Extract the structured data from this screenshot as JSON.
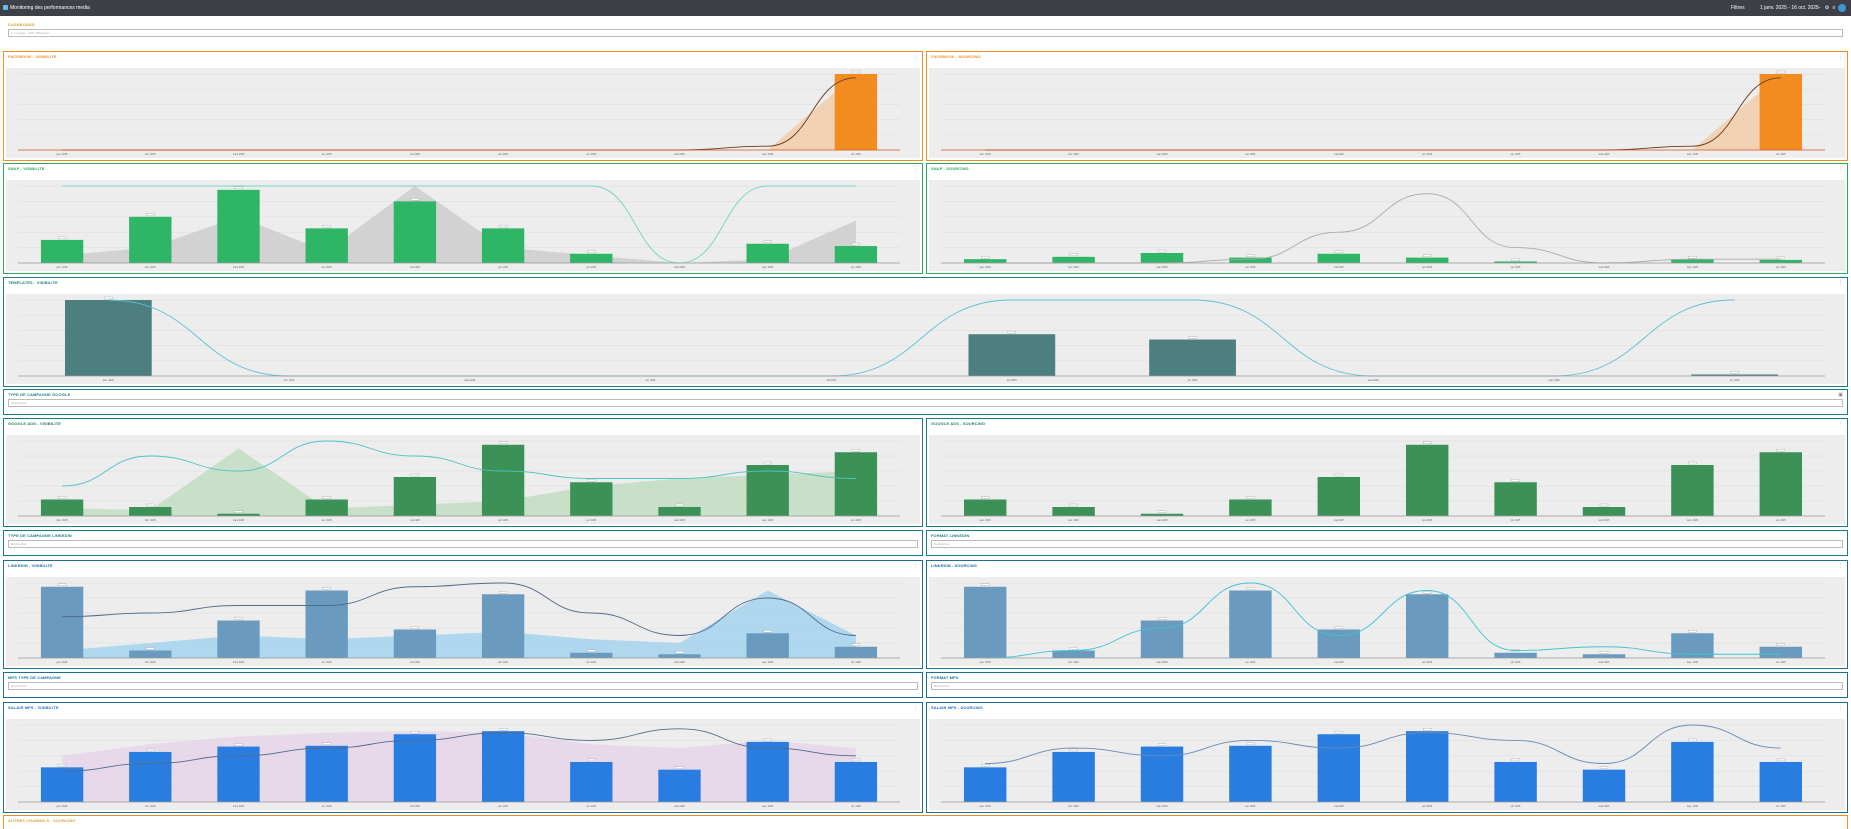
{
  "topbar": {
    "title": "Monitoring des performances media",
    "filter_label": "Filtres",
    "date_range": "1 janv. 2025 - 16 oct. 2025"
  },
  "colors": {
    "orange": "#f28c1e",
    "green": "#2eb566",
    "teal": "#4e7f80",
    "dgreen": "#3c9157",
    "lblue": "#6a9bbf",
    "blue": "#2a7de0"
  },
  "sections": {
    "dashboard": {
      "title": "DASHBOARD",
      "placeholder": "1 / 1 pages - 300 / 300 lignes"
    },
    "fb_visib": {
      "title": "FACEBOOK - VISIBILITE"
    },
    "fb_sourc": {
      "title": "FACEBOOK - SOURCING"
    },
    "snap_visib": {
      "title": "SNAP - VISIBILITE"
    },
    "snap_sourc": {
      "title": "SNAP - SOURCING"
    },
    "tt_visib": {
      "title": "TEMPLATES - VISIBILITE"
    },
    "gads_type": {
      "title": "TYPE DE CAMPAGNE GOOGLE",
      "placeholder": "Rechercher"
    },
    "gads_visib": {
      "title": "GOOGLE ADS - VISIBILITE"
    },
    "gads_sourc": {
      "title": "GOOGLE ADS - SOURCING"
    },
    "li_type": {
      "title": "TYPE DE CAMPAGNE LINKEDIN",
      "placeholder": "Rechercher"
    },
    "li_format": {
      "title": "FORMAT LINKEDIN",
      "placeholder": "Rechercher"
    },
    "li_visib": {
      "title": "LINKEDIN - VISIBILITE"
    },
    "li_sourc": {
      "title": "LINKEDIN - SOURCING"
    },
    "mps_type": {
      "title": "MPS TYPE DE CAMPAGNE",
      "placeholder": "Rechercher"
    },
    "mps_format": {
      "title": "FORMAT MPS",
      "placeholder": "Rechercher"
    },
    "mps_visib": {
      "title": "SALAIR MPS - VISIBILITE"
    },
    "mps_sourc": {
      "title": "SALAIR MPS - SOURCING"
    },
    "bottom": {
      "title": "AUTRES CHANNELS - SOURCING"
    }
  },
  "months": [
    "janv. 2025",
    "févr. 2025",
    "mars 2025",
    "avr. 2025",
    "mai 2025",
    "juin 2025",
    "juil. 2025",
    "août 2025",
    "sept. 2025",
    "oct. 2025"
  ],
  "chart_data": [
    {
      "id": "fb_visib",
      "type": "bar",
      "bars": [
        0,
        0,
        0,
        0,
        0,
        0,
        0,
        0,
        0,
        100
      ],
      "area": [
        0,
        0,
        0,
        0,
        0,
        0,
        0,
        0,
        0,
        100
      ],
      "line": [
        0,
        0,
        0,
        0,
        0,
        0,
        0,
        0,
        5,
        95
      ]
    },
    {
      "id": "fb_sourc",
      "type": "bar",
      "bars": [
        0,
        0,
        0,
        0,
        0,
        0,
        0,
        0,
        0,
        100
      ],
      "area": [
        0,
        0,
        0,
        0,
        0,
        0,
        0,
        0,
        0,
        100
      ],
      "line": [
        0,
        0,
        0,
        0,
        0,
        0,
        0,
        0,
        5,
        95
      ]
    },
    {
      "id": "snap_visib",
      "type": "bar",
      "bars": [
        30,
        60,
        95,
        45,
        80,
        45,
        12,
        0,
        25,
        22
      ],
      "area": [
        10,
        20,
        60,
        15,
        100,
        20,
        10,
        0,
        5,
        55
      ],
      "line": [
        100,
        100,
        100,
        100,
        100,
        100,
        100,
        0,
        100,
        100
      ]
    },
    {
      "id": "snap_sourc",
      "type": "bar",
      "bars": [
        5,
        8,
        13,
        7,
        12,
        7,
        2,
        0,
        5,
        4
      ],
      "area": [
        0,
        0,
        0,
        0,
        0,
        0,
        0,
        0,
        0,
        0
      ],
      "line": [
        0,
        0,
        0,
        5,
        40,
        90,
        20,
        0,
        5,
        5
      ]
    },
    {
      "id": "tt_visib",
      "type": "bar",
      "bars": [
        100,
        0,
        0,
        0,
        0,
        55,
        48,
        0,
        0,
        2
      ],
      "area": [
        0,
        0,
        0,
        0,
        0,
        0,
        0,
        0,
        0,
        0
      ],
      "line": [
        100,
        0,
        0,
        0,
        0,
        100,
        100,
        0,
        0,
        100
      ]
    },
    {
      "id": "gads_visib",
      "type": "bar",
      "bars": [
        22,
        12,
        3,
        22,
        52,
        95,
        45,
        12,
        68,
        85
      ],
      "area": [
        10,
        8,
        90,
        10,
        15,
        20,
        40,
        50,
        55,
        60
      ],
      "line": [
        40,
        80,
        60,
        100,
        80,
        60,
        50,
        50,
        60,
        50
      ]
    },
    {
      "id": "gads_sourc",
      "type": "bar",
      "bars": [
        22,
        12,
        3,
        22,
        52,
        95,
        45,
        12,
        68,
        85
      ],
      "area": [
        0,
        0,
        0,
        0,
        0,
        0,
        0,
        0,
        0,
        0
      ],
      "line": [
        0,
        0,
        0,
        0,
        0,
        0,
        0,
        0,
        0,
        0
      ]
    },
    {
      "id": "li_visib",
      "type": "bar",
      "bars": [
        95,
        10,
        50,
        90,
        38,
        85,
        7,
        5,
        33,
        15
      ],
      "area": [
        10,
        20,
        30,
        25,
        30,
        35,
        25,
        20,
        90,
        30
      ],
      "line": [
        55,
        60,
        70,
        70,
        95,
        100,
        60,
        30,
        80,
        30
      ]
    },
    {
      "id": "li_sourc",
      "type": "bar",
      "bars": [
        95,
        10,
        50,
        90,
        38,
        85,
        7,
        5,
        33,
        15
      ],
      "area": [
        0,
        0,
        0,
        0,
        0,
        0,
        0,
        0,
        0,
        0
      ],
      "line": [
        0,
        10,
        40,
        100,
        30,
        90,
        10,
        15,
        5,
        5
      ]
    },
    {
      "id": "mps_visib",
      "type": "bar",
      "bars": [
        45,
        65,
        72,
        73,
        88,
        92,
        52,
        42,
        78,
        52
      ],
      "area": [
        60,
        75,
        85,
        90,
        92,
        90,
        75,
        70,
        80,
        70
      ],
      "line": [
        40,
        50,
        60,
        70,
        80,
        90,
        80,
        95,
        70,
        60
      ]
    },
    {
      "id": "mps_sourc",
      "type": "bar",
      "bars": [
        45,
        65,
        72,
        73,
        88,
        92,
        52,
        42,
        78,
        52
      ],
      "area": [
        0,
        0,
        0,
        0,
        0,
        0,
        0,
        0,
        0,
        0
      ],
      "line": [
        50,
        70,
        60,
        80,
        70,
        90,
        80,
        50,
        100,
        70
      ]
    }
  ]
}
